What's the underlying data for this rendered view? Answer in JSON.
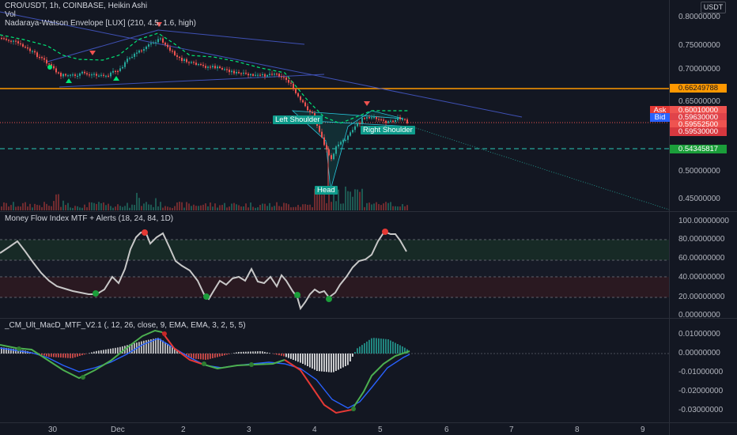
{
  "header": {
    "symbol_line": "CRO/USDT, 1h, COINBASE, Heikin Ashi",
    "vol_label": "Vol",
    "indicator_label": "Nadaraya-Watson Envelope [LUX] (210, 4.5, 1.6, high)",
    "currency_badge": "USDT"
  },
  "price_axis": {
    "labels": [
      "0.80000000",
      "0.75000000",
      "0.70000000",
      "0.65000000",
      "0.50000000",
      "0.45000000"
    ],
    "tags": {
      "orange_line": "0.66249788",
      "ask_label": "Ask",
      "ask_value": "0.60010000",
      "bid_label": "Bid",
      "bid_value": "0.59630000",
      "last_price": "0.59552500",
      "prev_price": "0.59530000",
      "green_line": "0.54345817"
    }
  },
  "pattern_labels": {
    "left_shoulder": "Left Shoulder",
    "right_shoulder": "Right Shoulder",
    "head": "Head"
  },
  "mfi_pane": {
    "title": "Money Flow Index MTF + Alerts (18, 24, 84, 1D)",
    "axis_labels": [
      "100.00000000",
      "80.00000000",
      "60.00000000",
      "40.00000000",
      "20.00000000",
      "0.00000000"
    ]
  },
  "macd_pane": {
    "title": "_CM_Ult_MacD_MTF_V2.1 (, 12, 26, close, 9, EMA, EMA, 3, 2, 5, 5)",
    "axis_labels": [
      "0.01000000",
      "0.00000000",
      "-0.01000000",
      "-0.02000000",
      "-0.03000000"
    ]
  },
  "time_axis": {
    "labels": [
      "30",
      "Dec",
      "2",
      "3",
      "4",
      "5",
      "6",
      "7",
      "8",
      "9"
    ]
  },
  "colors": {
    "background": "#131722",
    "up": "#26a69a",
    "down": "#ef5350",
    "envelope": "#00e676",
    "trendline": "#2962ff",
    "orange": "#ff9800"
  }
}
